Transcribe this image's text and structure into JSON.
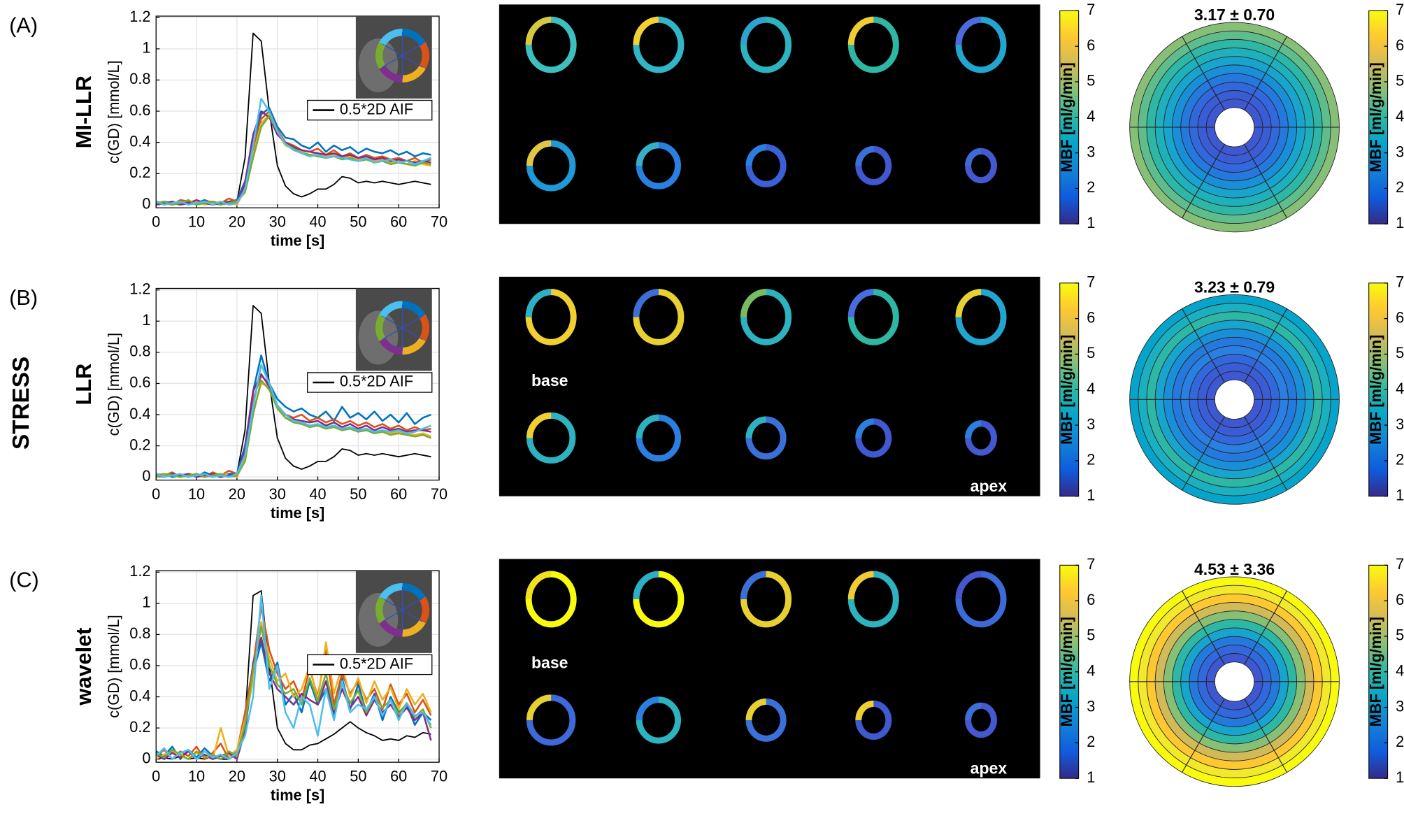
{
  "side_label": "STRESS",
  "panels": [
    {
      "label": "(A)",
      "method": "MI-LLR",
      "mean_mbf": "3.17 ± 0.70"
    },
    {
      "label": "(B)",
      "method": "LLR",
      "mean_mbf": "3.23 ± 0.79",
      "base_label": "base",
      "apex_label": "apex"
    },
    {
      "label": "(C)",
      "method": "wavelet",
      "mean_mbf": "4.53 ± 3.36",
      "base_label": "base",
      "apex_label": "apex"
    }
  ],
  "chart_data": [
    {
      "type": "line",
      "xlabel": "time [s]",
      "ylabel": "c(GD) [mmol/L]",
      "x": [
        0,
        2,
        4,
        6,
        8,
        10,
        12,
        14,
        16,
        18,
        20,
        22,
        24,
        26,
        28,
        30,
        32,
        34,
        36,
        38,
        40,
        42,
        44,
        46,
        48,
        50,
        52,
        54,
        56,
        58,
        60,
        62,
        64,
        66,
        68
      ],
      "xlim": [
        0,
        70
      ],
      "xticks": [
        0,
        10,
        20,
        30,
        40,
        50,
        60,
        70
      ],
      "ylim": [
        -0.02,
        1.21
      ],
      "yticks": [
        0,
        0.2,
        0.4,
        0.6,
        0.8,
        1,
        1.2
      ],
      "grid": true,
      "legend": "upper right",
      "series": [
        {
          "name": "0.5*2D AIF",
          "color": "#000000",
          "values": [
            0.01,
            0.02,
            0.01,
            0.0,
            0.02,
            0.01,
            0.02,
            0.01,
            0.0,
            0.01,
            0.02,
            0.3,
            1.1,
            1.05,
            0.6,
            0.25,
            0.12,
            0.07,
            0.05,
            0.07,
            0.1,
            0.1,
            0.13,
            0.18,
            0.17,
            0.14,
            0.15,
            0.14,
            0.15,
            0.14,
            0.13,
            0.14,
            0.15,
            0.14,
            0.13
          ]
        },
        {
          "color": "#0072BD",
          "values": [
            0.01,
            0.02,
            0.01,
            0.0,
            0.02,
            0.01,
            0.03,
            0.01,
            0.0,
            0.02,
            0.03,
            0.15,
            0.4,
            0.58,
            0.62,
            0.5,
            0.43,
            0.42,
            0.38,
            0.36,
            0.4,
            0.34,
            0.38,
            0.35,
            0.37,
            0.33,
            0.36,
            0.34,
            0.33,
            0.35,
            0.32,
            0.34,
            0.31,
            0.33,
            0.32
          ]
        },
        {
          "color": "#D95319",
          "values": [
            0.02,
            0.01,
            0.0,
            0.03,
            0.02,
            0.0,
            0.02,
            0.02,
            0.01,
            0.04,
            0.02,
            0.12,
            0.35,
            0.55,
            0.6,
            0.48,
            0.4,
            0.38,
            0.35,
            0.34,
            0.36,
            0.32,
            0.35,
            0.31,
            0.33,
            0.3,
            0.32,
            0.3,
            0.31,
            0.29,
            0.3,
            0.28,
            0.3,
            0.27,
            0.29
          ]
        },
        {
          "color": "#EDB120",
          "values": [
            0.01,
            0.0,
            0.02,
            0.01,
            0.0,
            0.02,
            0.0,
            0.01,
            0.02,
            0.01,
            0.0,
            0.1,
            0.32,
            0.52,
            0.58,
            0.46,
            0.38,
            0.36,
            0.34,
            0.32,
            0.33,
            0.31,
            0.32,
            0.3,
            0.31,
            0.29,
            0.3,
            0.28,
            0.29,
            0.27,
            0.28,
            0.26,
            0.28,
            0.26,
            0.25
          ]
        },
        {
          "color": "#7E2F8E",
          "values": [
            0.0,
            0.01,
            0.02,
            0.0,
            0.01,
            0.03,
            0.01,
            0.0,
            0.01,
            0.02,
            0.01,
            0.14,
            0.45,
            0.6,
            0.56,
            0.45,
            0.4,
            0.37,
            0.35,
            0.34,
            0.33,
            0.32,
            0.33,
            0.31,
            0.32,
            0.3,
            0.31,
            0.29,
            0.3,
            0.28,
            0.29,
            0.28,
            0.27,
            0.28,
            0.27
          ]
        },
        {
          "color": "#77AC30",
          "values": [
            0.01,
            0.02,
            0.0,
            0.01,
            0.03,
            0.0,
            0.01,
            0.02,
            0.0,
            0.01,
            0.02,
            0.08,
            0.3,
            0.5,
            0.57,
            0.47,
            0.39,
            0.36,
            0.33,
            0.32,
            0.31,
            0.3,
            0.31,
            0.29,
            0.3,
            0.28,
            0.29,
            0.27,
            0.28,
            0.26,
            0.27,
            0.26,
            0.25,
            0.27,
            0.26
          ]
        },
        {
          "color": "#4DBEEE",
          "values": [
            0.02,
            0.0,
            0.01,
            0.02,
            0.0,
            0.01,
            0.02,
            0.0,
            0.02,
            0.0,
            0.01,
            0.1,
            0.38,
            0.68,
            0.6,
            0.47,
            0.39,
            0.35,
            0.33,
            0.31,
            0.32,
            0.3,
            0.31,
            0.3,
            0.29,
            0.28,
            0.3,
            0.27,
            0.28,
            0.29,
            0.27,
            0.28,
            0.26,
            0.28,
            0.3
          ]
        }
      ]
    },
    {
      "type": "line",
      "xlabel": "time [s]",
      "ylabel": "c(GD) [mmol/L]",
      "x": [
        0,
        2,
        4,
        6,
        8,
        10,
        12,
        14,
        16,
        18,
        20,
        22,
        24,
        26,
        28,
        30,
        32,
        34,
        36,
        38,
        40,
        42,
        44,
        46,
        48,
        50,
        52,
        54,
        56,
        58,
        60,
        62,
        64,
        66,
        68
      ],
      "xlim": [
        0,
        70
      ],
      "xticks": [
        0,
        10,
        20,
        30,
        40,
        50,
        60,
        70
      ],
      "ylim": [
        -0.02,
        1.21
      ],
      "yticks": [
        0,
        0.2,
        0.4,
        0.6,
        0.8,
        1,
        1.2
      ],
      "grid": true,
      "legend": "upper right",
      "series": [
        {
          "name": "0.5*2D AIF",
          "color": "#000000",
          "values": [
            0.01,
            0.02,
            0.01,
            0.0,
            0.02,
            0.01,
            0.02,
            0.01,
            0.0,
            0.01,
            0.02,
            0.3,
            1.1,
            1.05,
            0.6,
            0.25,
            0.12,
            0.07,
            0.05,
            0.07,
            0.1,
            0.1,
            0.13,
            0.18,
            0.17,
            0.14,
            0.15,
            0.14,
            0.15,
            0.14,
            0.13,
            0.14,
            0.15,
            0.14,
            0.13
          ]
        },
        {
          "color": "#0072BD",
          "values": [
            0.01,
            0.02,
            0.0,
            0.01,
            0.02,
            0.0,
            0.03,
            0.01,
            0.0,
            0.02,
            0.02,
            0.2,
            0.55,
            0.78,
            0.6,
            0.5,
            0.45,
            0.42,
            0.44,
            0.4,
            0.38,
            0.42,
            0.36,
            0.45,
            0.38,
            0.41,
            0.37,
            0.42,
            0.36,
            0.4,
            0.35,
            0.41,
            0.34,
            0.38,
            0.4
          ]
        },
        {
          "color": "#D95319",
          "values": [
            0.02,
            0.01,
            0.03,
            0.0,
            0.02,
            0.01,
            0.0,
            0.03,
            0.01,
            0.04,
            0.02,
            0.15,
            0.5,
            0.65,
            0.6,
            0.45,
            0.4,
            0.38,
            0.4,
            0.36,
            0.38,
            0.35,
            0.37,
            0.34,
            0.36,
            0.33,
            0.35,
            0.32,
            0.34,
            0.31,
            0.33,
            0.3,
            0.32,
            0.3,
            0.31
          ]
        },
        {
          "color": "#EDB120",
          "values": [
            0.0,
            0.01,
            0.02,
            0.01,
            0.0,
            0.02,
            0.01,
            0.0,
            0.02,
            0.01,
            0.0,
            0.12,
            0.42,
            0.6,
            0.58,
            0.45,
            0.38,
            0.36,
            0.35,
            0.33,
            0.34,
            0.32,
            0.33,
            0.31,
            0.32,
            0.3,
            0.31,
            0.29,
            0.3,
            0.28,
            0.29,
            0.28,
            0.27,
            0.28,
            0.26
          ]
        },
        {
          "color": "#7E2F8E",
          "values": [
            0.01,
            0.0,
            0.02,
            0.01,
            0.02,
            0.0,
            0.01,
            0.02,
            0.0,
            0.01,
            0.01,
            0.18,
            0.55,
            0.66,
            0.58,
            0.46,
            0.4,
            0.37,
            0.36,
            0.35,
            0.36,
            0.33,
            0.35,
            0.32,
            0.34,
            0.31,
            0.33,
            0.3,
            0.32,
            0.3,
            0.31,
            0.29,
            0.3,
            0.3,
            0.29
          ]
        },
        {
          "color": "#77AC30",
          "values": [
            0.0,
            0.02,
            0.01,
            0.0,
            0.01,
            0.02,
            0.0,
            0.01,
            0.02,
            0.0,
            0.01,
            0.1,
            0.4,
            0.62,
            0.56,
            0.44,
            0.38,
            0.35,
            0.34,
            0.32,
            0.33,
            0.31,
            0.32,
            0.3,
            0.31,
            0.29,
            0.3,
            0.28,
            0.29,
            0.27,
            0.28,
            0.27,
            0.26,
            0.27,
            0.25
          ]
        },
        {
          "color": "#4DBEEE",
          "values": [
            0.02,
            0.0,
            0.01,
            0.02,
            0.0,
            0.01,
            0.02,
            0.0,
            0.01,
            0.0,
            0.02,
            0.14,
            0.45,
            0.72,
            0.6,
            0.46,
            0.4,
            0.36,
            0.35,
            0.33,
            0.34,
            0.32,
            0.33,
            0.31,
            0.32,
            0.3,
            0.31,
            0.29,
            0.3,
            0.29,
            0.3,
            0.28,
            0.29,
            0.31,
            0.33
          ]
        }
      ]
    },
    {
      "type": "line",
      "xlabel": "time [s]",
      "ylabel": "c(GD) [mmol/L]",
      "x": [
        0,
        2,
        4,
        6,
        8,
        10,
        12,
        14,
        16,
        18,
        20,
        22,
        24,
        26,
        28,
        30,
        32,
        34,
        36,
        38,
        40,
        42,
        44,
        46,
        48,
        50,
        52,
        54,
        56,
        58,
        60,
        62,
        64,
        66,
        68
      ],
      "xlim": [
        0,
        70
      ],
      "xticks": [
        0,
        10,
        20,
        30,
        40,
        50,
        60,
        70
      ],
      "ylim": [
        -0.02,
        1.21
      ],
      "yticks": [
        0,
        0.2,
        0.4,
        0.6,
        0.8,
        1,
        1.2
      ],
      "grid": true,
      "legend": "upper right",
      "series": [
        {
          "name": "0.5*2D AIF",
          "color": "#000000",
          "values": [
            0.0,
            0.01,
            0.0,
            0.02,
            0.0,
            0.01,
            0.0,
            0.02,
            0.0,
            0.0,
            0.03,
            0.25,
            1.05,
            1.08,
            0.6,
            0.2,
            0.1,
            0.06,
            0.06,
            0.09,
            0.1,
            0.13,
            0.16,
            0.2,
            0.24,
            0.2,
            0.17,
            0.15,
            0.12,
            0.13,
            0.12,
            0.15,
            0.14,
            0.17,
            0.16
          ]
        },
        {
          "color": "#0072BD",
          "values": [
            0.05,
            0.02,
            0.08,
            0.0,
            0.06,
            0.01,
            0.07,
            0.02,
            0.0,
            0.03,
            0.02,
            0.2,
            0.55,
            0.75,
            0.5,
            0.62,
            0.35,
            0.42,
            0.3,
            0.5,
            0.35,
            0.45,
            0.28,
            0.52,
            0.32,
            0.48,
            0.3,
            0.42,
            0.25,
            0.4,
            0.3,
            0.35,
            0.22,
            0.3,
            0.25
          ]
        },
        {
          "color": "#D95319",
          "values": [
            0.02,
            0.06,
            0.0,
            0.05,
            0.02,
            0.08,
            0.0,
            0.04,
            0.1,
            0.0,
            0.05,
            0.3,
            0.6,
            0.98,
            0.7,
            0.55,
            0.45,
            0.5,
            0.38,
            0.58,
            0.4,
            0.7,
            0.35,
            0.55,
            0.42,
            0.5,
            0.38,
            0.45,
            0.32,
            0.48,
            0.35,
            0.42,
            0.3,
            0.38,
            0.28
          ]
        },
        {
          "color": "#EDB120",
          "values": [
            0.0,
            0.03,
            0.05,
            0.02,
            0.0,
            0.04,
            0.02,
            0.0,
            0.2,
            0.02,
            0.06,
            0.25,
            0.5,
            0.88,
            0.65,
            0.5,
            0.55,
            0.4,
            0.45,
            0.6,
            0.38,
            0.75,
            0.42,
            0.6,
            0.4,
            0.52,
            0.36,
            0.5,
            0.38,
            0.46,
            0.32,
            0.45,
            0.35,
            0.42,
            0.3
          ]
        },
        {
          "color": "#7E2F8E",
          "values": [
            0.03,
            0.0,
            0.04,
            0.01,
            0.05,
            0.0,
            0.03,
            0.0,
            0.02,
            0.04,
            0.0,
            0.18,
            0.62,
            0.78,
            0.55,
            0.45,
            0.4,
            0.35,
            0.42,
            0.38,
            0.35,
            0.5,
            0.3,
            0.45,
            0.33,
            0.4,
            0.28,
            0.38,
            0.3,
            0.35,
            0.27,
            0.33,
            0.25,
            0.3,
            0.12
          ]
        },
        {
          "color": "#77AC30",
          "values": [
            0.04,
            0.01,
            0.06,
            0.03,
            0.0,
            0.05,
            0.01,
            0.03,
            0.0,
            0.05,
            0.02,
            0.22,
            0.58,
            0.85,
            0.6,
            0.48,
            0.42,
            0.45,
            0.35,
            0.52,
            0.37,
            0.55,
            0.32,
            0.48,
            0.36,
            0.44,
            0.3,
            0.4,
            0.33,
            0.38,
            0.29,
            0.36,
            0.27,
            0.32,
            0.2
          ]
        },
        {
          "color": "#4DBEEE",
          "values": [
            0.02,
            0.07,
            0.0,
            0.04,
            0.06,
            0.0,
            0.05,
            0.01,
            0.03,
            0.0,
            0.04,
            0.15,
            0.4,
            1.05,
            0.45,
            0.6,
            0.3,
            0.2,
            0.4,
            0.35,
            0.15,
            0.45,
            0.25,
            0.5,
            0.3,
            0.35,
            0.32,
            0.4,
            0.28,
            0.38,
            0.25,
            0.36,
            0.28,
            0.3,
            0.22
          ]
        }
      ]
    },
    {
      "type": "colorbar",
      "label": "MBF [ml/g/min]",
      "ylim": [
        1,
        7
      ],
      "yticks": [
        1,
        2,
        3,
        4,
        5,
        6,
        7
      ],
      "colormap": [
        "#352a87",
        "#0f5cdd",
        "#1481d6",
        "#06a4ca",
        "#2eb7a4",
        "#87bf77",
        "#d1bb59",
        "#fec832",
        "#f9fb0e"
      ]
    }
  ]
}
